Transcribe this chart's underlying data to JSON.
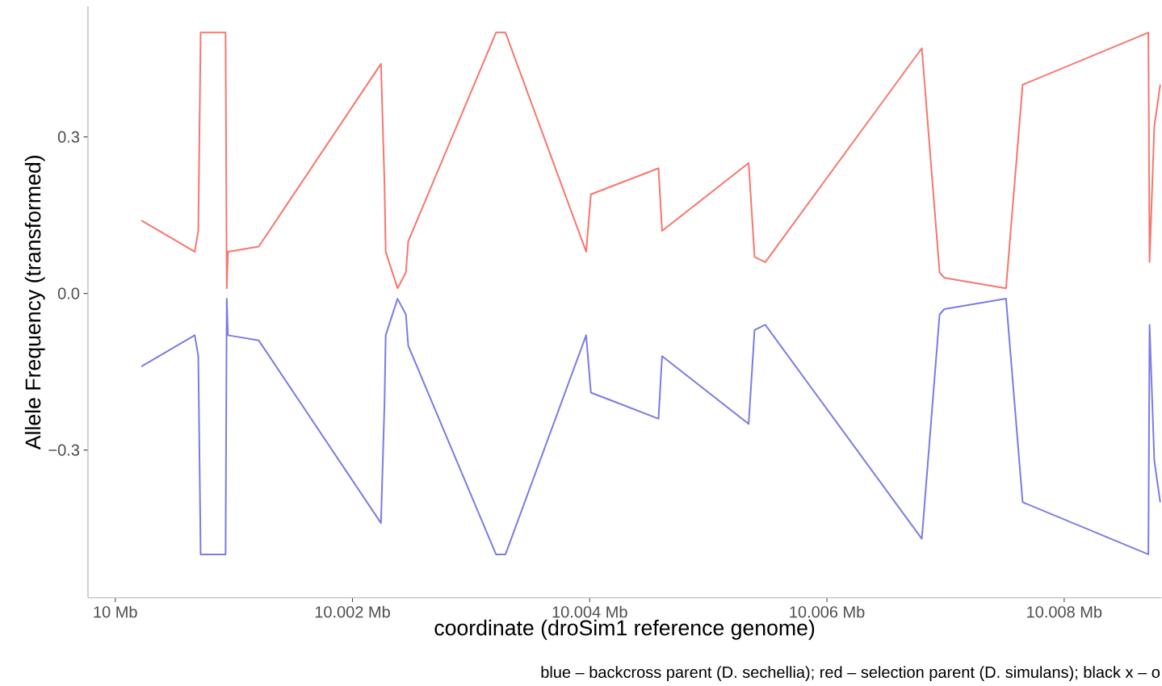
{
  "chart_data": {
    "type": "line",
    "xlabel": "coordinate (droSim1 reference genome)",
    "ylabel": "Allele Frequency (transformed)",
    "annotations": [
      "blue – backcross parent (D. sechellia); red – selection parent (D. simulans); black x – o"
    ],
    "x": [
      10.00022,
      10.00067,
      10.0007,
      10.00072,
      10.00093,
      10.00094,
      10.00095,
      10.00121,
      10.00224,
      10.00227,
      10.00228,
      10.00238,
      10.00245,
      10.00247,
      10.00321,
      10.00329,
      10.00397,
      10.00401,
      10.00458,
      10.00461,
      10.00534,
      10.00539,
      10.00548,
      10.0068,
      10.00695,
      10.00699,
      10.00751,
      10.00765,
      10.00871,
      10.00872,
      10.00876,
      10.00881
    ],
    "series": [
      {
        "color": "#f8766d",
        "values": [
          0.14,
          0.08,
          0.12,
          0.5,
          0.5,
          0.01,
          0.08,
          0.09,
          0.44,
          0.21,
          0.08,
          0.01,
          0.04,
          0.1,
          0.5,
          0.5,
          0.08,
          0.19,
          0.24,
          0.12,
          0.25,
          0.07,
          0.06,
          0.47,
          0.04,
          0.03,
          0.01,
          0.4,
          0.5,
          0.06,
          0.32,
          0.4
        ]
      },
      {
        "color": "#7b7be6",
        "values": [
          -0.14,
          -0.08,
          -0.12,
          -0.5,
          -0.5,
          -0.01,
          -0.08,
          -0.09,
          -0.44,
          -0.21,
          -0.08,
          -0.01,
          -0.04,
          -0.1,
          -0.5,
          -0.5,
          -0.08,
          -0.19,
          -0.24,
          -0.12,
          -0.25,
          -0.07,
          -0.06,
          -0.47,
          -0.04,
          -0.03,
          -0.01,
          -0.4,
          -0.5,
          -0.06,
          -0.32,
          -0.4
        ]
      }
    ],
    "xlim": [
      9.99977,
      10.00882
    ],
    "ylim": [
      -0.583,
      0.55
    ],
    "xticks": [
      {
        "value": 10,
        "label": "10 Mb"
      },
      {
        "value": 10.002,
        "label": "10.002 Mb"
      },
      {
        "value": 10.004,
        "label": "10.004 Mb"
      },
      {
        "value": 10.006,
        "label": "10.006 Mb"
      },
      {
        "value": 10.008,
        "label": "10.008 Mb"
      }
    ],
    "yticks": [
      {
        "value": -0.3,
        "label": "−0.3"
      },
      {
        "value": 0,
        "label": "0.0"
      },
      {
        "value": 0.3,
        "label": "0.3"
      }
    ],
    "grid": false,
    "legend": false,
    "line_style": "solid"
  }
}
